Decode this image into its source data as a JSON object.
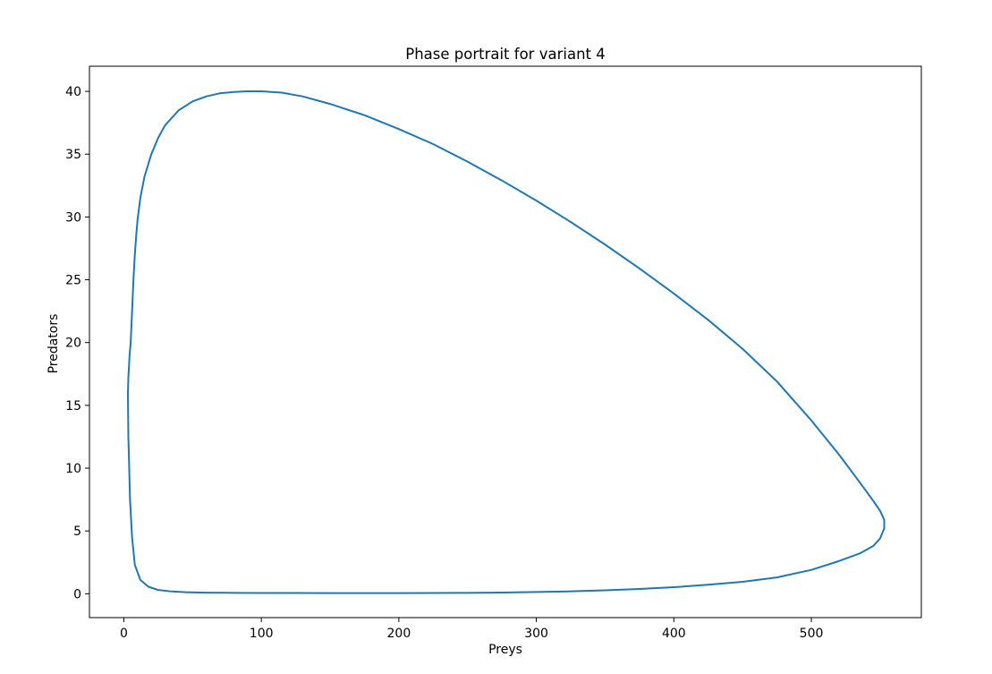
{
  "chart_data": {
    "type": "line",
    "title": "Phase portrait for variant 4",
    "xlabel": "Preys",
    "ylabel": "Predators",
    "xlim": [
      -25,
      580
    ],
    "ylim": [
      -1.9,
      42.0
    ],
    "xticks": [
      0,
      100,
      200,
      300,
      400,
      500
    ],
    "yticks": [
      0,
      5,
      10,
      15,
      20,
      25,
      30,
      35,
      40
    ],
    "grid": false,
    "series": [
      {
        "color": "#1f77b4",
        "x": [
          5,
          7,
          8,
          9,
          10,
          12,
          15,
          20,
          25,
          30,
          40,
          50,
          60,
          70,
          80,
          90,
          100,
          115,
          130,
          150,
          175,
          200,
          225,
          250,
          275,
          300,
          325,
          350,
          375,
          400,
          425,
          450,
          475,
          500,
          520,
          535,
          545,
          550,
          553,
          553,
          550,
          545,
          535,
          520,
          500,
          475,
          450,
          425,
          400,
          375,
          350,
          325,
          300,
          275,
          250,
          225,
          200,
          175,
          150,
          125,
          100,
          80,
          60,
          45,
          35,
          25,
          18,
          12,
          8,
          6,
          4.5,
          3.8,
          3.3,
          3.1,
          3.0,
          3.0,
          3.1,
          3.3,
          3.7,
          4.2,
          5
        ],
        "y": [
          20.0,
          25.0,
          27.0,
          28.5,
          29.8,
          31.5,
          33.2,
          35.0,
          36.3,
          37.3,
          38.5,
          39.2,
          39.6,
          39.85,
          39.95,
          40.0,
          40.0,
          39.9,
          39.6,
          39.0,
          38.1,
          37.0,
          35.8,
          34.4,
          32.9,
          31.3,
          29.6,
          27.8,
          25.9,
          23.9,
          21.8,
          19.5,
          16.9,
          13.8,
          11.1,
          8.9,
          7.4,
          6.6,
          5.9,
          5.2,
          4.4,
          3.8,
          3.2,
          2.6,
          1.9,
          1.3,
          0.95,
          0.72,
          0.52,
          0.38,
          0.27,
          0.19,
          0.14,
          0.1,
          0.07,
          0.06,
          0.05,
          0.05,
          0.05,
          0.06,
          0.06,
          0.07,
          0.09,
          0.12,
          0.18,
          0.3,
          0.55,
          1.1,
          2.3,
          4.5,
          7.5,
          10.5,
          12.5,
          14.5,
          15.5,
          16.0,
          16.5,
          17.2,
          18.0,
          19.0,
          20.0
        ]
      }
    ]
  }
}
